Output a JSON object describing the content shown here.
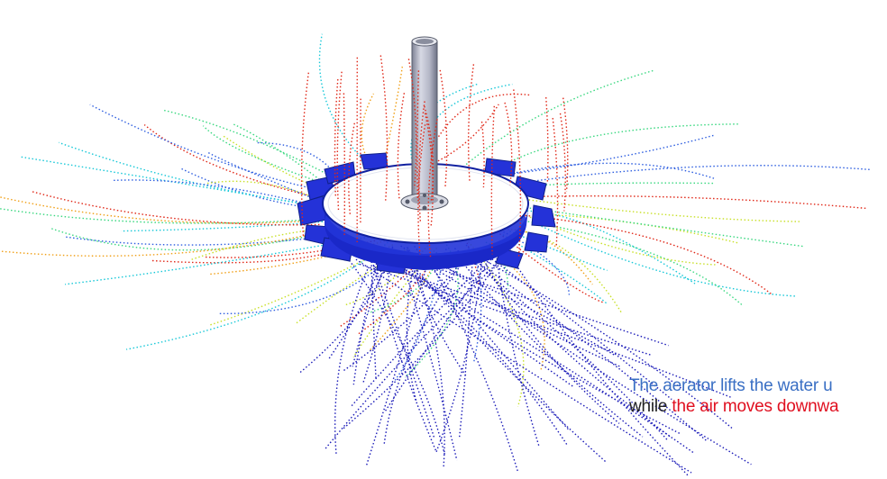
{
  "caption": {
    "line1": "The aerator lifts the water u",
    "line2_prefix": "while ",
    "line2_highlight": "the air moves downwa"
  },
  "colors": {
    "caption_blue": "#3a6fc4",
    "caption_red": "#e01020",
    "caption_dark": "#222222",
    "disk_blue": "#1f2fe0",
    "disk_top": "#ffffff",
    "pipe": "#b4b7c4",
    "streamline_palette": [
      "#1a1ab8",
      "#2f5fe0",
      "#18c8d8",
      "#3ad880",
      "#c8e028",
      "#f0a018",
      "#e02818"
    ]
  },
  "scene": {
    "objects": [
      "vertical-pipe-icon",
      "aerator-disk-icon",
      "flow-streamlines"
    ]
  }
}
